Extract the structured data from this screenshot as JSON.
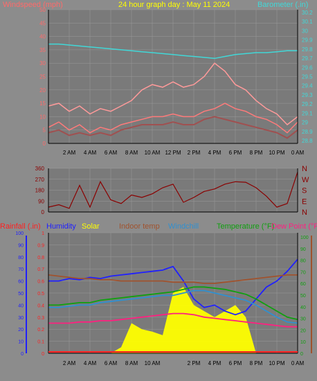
{
  "title": "24 hour graph day : May 11 2024",
  "colors": {
    "background": "#8c8c8c",
    "plot_bg": "#7a7a7a",
    "grid": "#9a9a9a",
    "axis": "#000000",
    "windspeed": "#ff7a7a",
    "windgust": "#ff9a9a",
    "windavg": "#a05050",
    "barometer": "#40d8d8",
    "direction": "#8b0000",
    "rain": "#ff2020",
    "humidity": "#2020ff",
    "solar": "#ffff00",
    "indoor_temp": "#a0522d",
    "windchill": "#3090d0",
    "temperature": "#10a010",
    "dewpoint": "#ff2080"
  },
  "panel1": {
    "left_label": "Windspeed (mph)",
    "right_label": "Barometer (.in)",
    "left_ticks": [
      "50",
      "45",
      "40",
      "35",
      "30",
      "25",
      "20",
      "15",
      "10",
      "5",
      "0"
    ],
    "right_ticks": [
      "30.2",
      "30.1",
      "30",
      "29.9",
      "29.8",
      "29.7",
      "29.6",
      "29.5",
      "29.4",
      "29.3",
      "29.2",
      "29.1",
      "29",
      "28.9",
      "28.8"
    ],
    "x_ticks": [
      "2 AM",
      "4 AM",
      "6 AM",
      "8 AM",
      "10 AM",
      "12 PM",
      "2 PM",
      "4 PM",
      "6 PM",
      "8 PM",
      "10 PM",
      "0 AM"
    ]
  },
  "panel2": {
    "left_ticks": [
      "360",
      "270",
      "180",
      "90",
      "0"
    ],
    "right_ticks": [
      "N",
      "W",
      "S",
      "E",
      "N"
    ]
  },
  "panel3": {
    "labels": {
      "rain": "Rainfall (.in)",
      "humidity": "Humidity",
      "solar": "Solar",
      "indoor": "Indoor temp",
      "windchill": "Windchill",
      "temperature": "Temperature (°F)",
      "dewpoint": "Dew Point (°F"
    },
    "left_ticks": [
      "100",
      "90",
      "80",
      "70",
      "60",
      "50",
      "40",
      "30",
      "20",
      "10",
      "0"
    ],
    "rain_ticks": [
      "1",
      "0.9",
      "0.8",
      "0.7",
      "0.6",
      "0.5",
      "0.4",
      "0.3",
      "0.2",
      "0.1",
      "0"
    ],
    "right_ticks": [
      "100",
      "90",
      "80",
      "70",
      "60",
      "50",
      "40",
      "30",
      "20",
      "10",
      "0"
    ],
    "x_ticks": [
      "2 AM",
      "4 AM",
      "6 AM",
      "8 AM",
      "10 AM",
      "2 PM",
      "4 PM",
      "6 PM",
      "8 PM",
      "10 PM",
      "0 AM"
    ]
  },
  "chart_data": [
    {
      "type": "line",
      "title": "24 hour graph day : May 11 2024",
      "ylabel": "Windspeed (mph)",
      "y2label": "Barometer (.in)",
      "ylim": [
        0,
        50
      ],
      "y2lim": [
        28.8,
        30.2
      ],
      "x": [
        0,
        1,
        2,
        3,
        4,
        5,
        6,
        7,
        8,
        9,
        10,
        11,
        12,
        13,
        14,
        15,
        16,
        17,
        18,
        19,
        20,
        21,
        22,
        23,
        24
      ],
      "series": [
        {
          "key": "windspeed",
          "values": [
            6,
            8,
            5,
            7,
            4,
            6,
            5,
            7,
            8,
            9,
            10,
            10,
            11,
            10,
            10,
            12,
            13,
            15,
            13,
            12,
            10,
            9,
            7,
            4,
            8
          ]
        },
        {
          "key": "windgust",
          "values": [
            14,
            15,
            12,
            14,
            11,
            13,
            12,
            14,
            16,
            20,
            22,
            21,
            23,
            21,
            22,
            25,
            30,
            27,
            22,
            20,
            16,
            13,
            11,
            7,
            10
          ]
        },
        {
          "key": "windavg",
          "values": [
            4,
            5,
            3,
            4,
            3,
            4,
            3,
            5,
            6,
            7,
            7,
            7,
            8,
            7,
            7,
            9,
            10,
            9,
            8,
            7,
            6,
            5,
            4,
            2,
            5
          ]
        },
        {
          "key": "barometer",
          "values": [
            29.84,
            29.84,
            29.83,
            29.82,
            29.81,
            29.8,
            29.79,
            29.78,
            29.77,
            29.76,
            29.75,
            29.74,
            29.73,
            29.72,
            29.71,
            29.7,
            29.69,
            29.71,
            29.73,
            29.74,
            29.75,
            29.75,
            29.76,
            29.77,
            29.77
          ]
        }
      ]
    },
    {
      "type": "line",
      "ylabel": "Wind direction",
      "ylim": [
        0,
        360
      ],
      "x": [
        0,
        1,
        2,
        3,
        4,
        5,
        6,
        7,
        8,
        9,
        10,
        11,
        12,
        13,
        14,
        15,
        16,
        17,
        18,
        19,
        20,
        21,
        22,
        23,
        24
      ],
      "series": [
        {
          "key": "direction",
          "values": [
            40,
            60,
            30,
            220,
            40,
            250,
            100,
            70,
            140,
            120,
            150,
            200,
            230,
            80,
            120,
            170,
            190,
            230,
            250,
            245,
            200,
            130,
            40,
            70,
            330
          ]
        }
      ]
    },
    {
      "type": "line",
      "ylim": [
        0,
        100
      ],
      "y2lim": [
        0,
        1
      ],
      "x": [
        0,
        1,
        2,
        3,
        4,
        5,
        6,
        7,
        8,
        9,
        10,
        11,
        12,
        13,
        14,
        15,
        16,
        17,
        18,
        19,
        20,
        21,
        22,
        23,
        24
      ],
      "series": [
        {
          "key": "humidity",
          "values": [
            60,
            60,
            62,
            61,
            63,
            62,
            64,
            65,
            66,
            67,
            68,
            69,
            72,
            60,
            45,
            38,
            40,
            35,
            32,
            35,
            45,
            55,
            60,
            68,
            78
          ]
        },
        {
          "key": "indoor_temp",
          "values": [
            65,
            64,
            63,
            62,
            62,
            61,
            61,
            60,
            60,
            60,
            60,
            60,
            59,
            59,
            59,
            58,
            58,
            59,
            60,
            61,
            62,
            63,
            64,
            65,
            65
          ]
        },
        {
          "key": "windchill",
          "values": [
            38,
            38,
            39,
            40,
            40,
            42,
            43,
            44,
            45,
            46,
            47,
            48,
            48,
            50,
            52,
            52,
            50,
            48,
            46,
            44,
            40,
            35,
            30,
            26,
            25
          ]
        },
        {
          "key": "temperature",
          "values": [
            40,
            40,
            41,
            42,
            42,
            44,
            45,
            46,
            47,
            48,
            49,
            50,
            51,
            53,
            55,
            55,
            54,
            53,
            51,
            49,
            45,
            40,
            35,
            30,
            28
          ]
        },
        {
          "key": "dewpoint",
          "values": [
            25,
            25,
            25,
            26,
            26,
            27,
            27,
            28,
            29,
            30,
            31,
            32,
            33,
            33,
            32,
            30,
            29,
            28,
            27,
            26,
            25,
            24,
            23,
            22,
            22
          ]
        },
        {
          "key": "solar",
          "values": [
            0,
            0,
            0,
            0,
            0,
            0,
            0,
            5,
            25,
            20,
            18,
            15,
            50,
            55,
            40,
            35,
            30,
            35,
            40,
            30,
            0,
            0,
            0,
            0,
            0
          ]
        },
        {
          "key": "rain",
          "values": [
            0,
            0,
            0,
            0,
            0,
            0,
            0,
            0,
            0,
            0,
            0,
            0,
            0,
            0,
            0,
            0,
            0,
            0,
            0,
            0,
            0,
            0,
            0,
            0,
            0
          ]
        }
      ]
    }
  ]
}
